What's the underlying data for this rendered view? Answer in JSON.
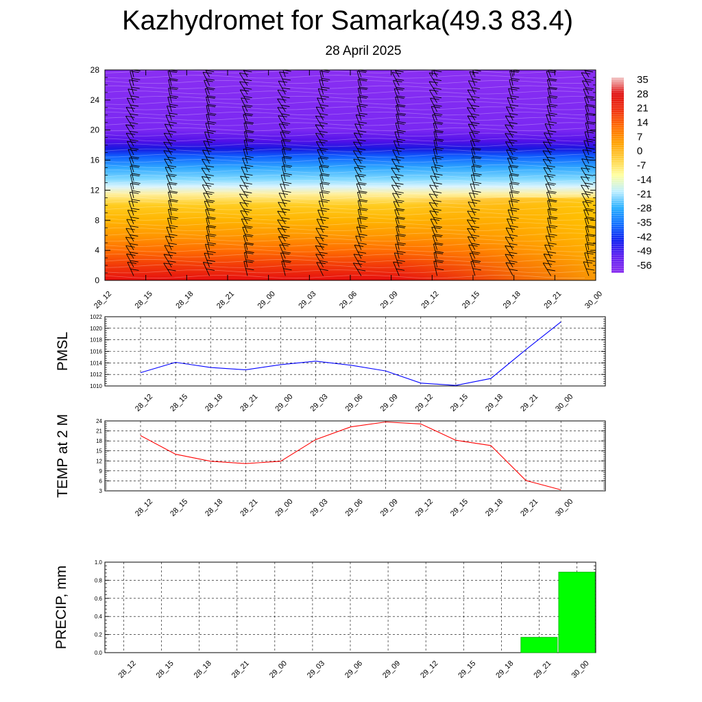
{
  "header": {
    "title": "Kazhydromet for Samarka(49.3 83.4)",
    "subtitle": "28 April 2025"
  },
  "chart_data": [
    {
      "type": "heatmap",
      "title": "",
      "ylim": [
        0,
        28
      ],
      "yticks": [
        "0",
        "4",
        "8",
        "12",
        "16",
        "20",
        "24",
        "28"
      ],
      "categories": [
        "28_12",
        "28_15",
        "28_18",
        "28_21",
        "29_00",
        "29_03",
        "29_06",
        "29_09",
        "29_12",
        "29_15",
        "29_18",
        "29_21",
        "30_00"
      ],
      "colorbar": {
        "labels": [
          "35",
          "28",
          "21",
          "14",
          "7",
          "0",
          "-7",
          "-14",
          "-21",
          "-28",
          "-35",
          "-42",
          "-49",
          "-56"
        ],
        "stops": [
          "#f2c6c6",
          "#e01010",
          "#f03010",
          "#ff6a00",
          "#ffa000",
          "#ffd040",
          "#ffffa0",
          "#bfefff",
          "#28b0ff",
          "#1070ff",
          "#1020f0",
          "#6020f0",
          "#8a2ff0"
        ]
      },
      "profile_levels": [
        0,
        2,
        4,
        6,
        8,
        10,
        11.5,
        12.5,
        13.5,
        15,
        16.5,
        17.5,
        18.5,
        20,
        28
      ],
      "profile_colors": [
        "#e61010",
        "#f23a08",
        "#ff6e00",
        "#ff9800",
        "#ffb400",
        "#ffcc20",
        "#fff0a0",
        "#d8f4ff",
        "#7fd8ff",
        "#30a8ff",
        "#1060ff",
        "#1818e0",
        "#5010e8",
        "#7a28f2",
        "#8a2ff2"
      ],
      "grid": false
    },
    {
      "type": "line",
      "ylabel": "PMSL",
      "categories": [
        "28_12",
        "28_15",
        "28_18",
        "28_21",
        "29_00",
        "29_03",
        "29_06",
        "29_09",
        "29_12",
        "29_15",
        "29_18",
        "29_21",
        "30_00"
      ],
      "values": [
        1012.3,
        1014.1,
        1013.2,
        1012.8,
        1013.7,
        1014.3,
        1013.6,
        1012.6,
        1010.5,
        1010.1,
        1011.3,
        1016.3,
        1021.1
      ],
      "ylim": [
        1010,
        1022
      ],
      "yticks": [
        "1010",
        "1012",
        "1014",
        "1016",
        "1018",
        "1020",
        "1022"
      ],
      "color": "#0000ff",
      "grid": true
    },
    {
      "type": "line",
      "ylabel": "TEMP at 2 M",
      "categories": [
        "28_12",
        "28_15",
        "28_18",
        "28_21",
        "29_00",
        "29_03",
        "29_06",
        "29_09",
        "29_12",
        "29_15",
        "29_18",
        "29_21",
        "30_00"
      ],
      "values": [
        19.6,
        14.0,
        11.9,
        11.2,
        11.9,
        18.4,
        22.2,
        23.7,
        23.1,
        18.2,
        16.6,
        6.1,
        3.3
      ],
      "ylim": [
        3,
        24
      ],
      "yticks": [
        "3",
        "6",
        "9",
        "12",
        "15",
        "18",
        "21",
        "24"
      ],
      "color": "#ff0000",
      "grid": true
    },
    {
      "type": "bar",
      "ylabel": "PRECIP, mm",
      "categories": [
        "28_12",
        "28_15",
        "28_18",
        "28_21",
        "29_00",
        "29_03",
        "29_06",
        "29_09",
        "29_12",
        "29_15",
        "29_18",
        "29_21",
        "30_00"
      ],
      "values": [
        0,
        0,
        0,
        0,
        0,
        0,
        0,
        0,
        0,
        0,
        0,
        0.17,
        0.89
      ],
      "ylim": [
        0,
        1.0
      ],
      "yticks": [
        "0.0",
        "0.2",
        "0.4",
        "0.6",
        "0.8",
        "1.0"
      ],
      "color": "#00ff00",
      "grid": true
    }
  ]
}
